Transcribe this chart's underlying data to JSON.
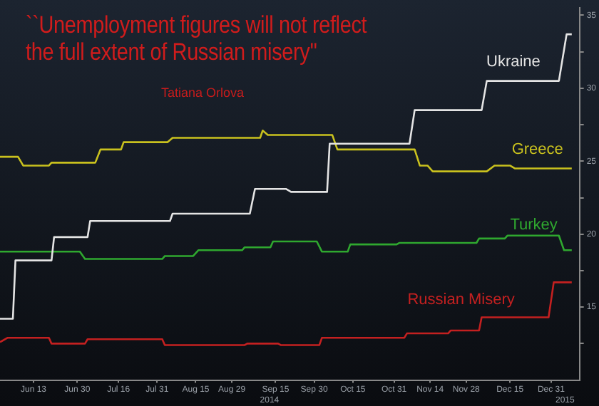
{
  "chart_data": {
    "type": "line",
    "title": "``Unemployment figures will not reflect the full extent of Russian misery''",
    "subtitle": "Tatiana Orlova",
    "series": [
      {
        "name": "Ukraine",
        "color": "#e4e4e4",
        "x": [
          "2014-05-31",
          "2014-06-05",
          "2014-06-06",
          "2014-06-20",
          "2014-06-21",
          "2014-07-04",
          "2014-07-05",
          "2014-08-05",
          "2014-08-06",
          "2014-09-05",
          "2014-09-07",
          "2014-09-19",
          "2014-09-21",
          "2014-10-05",
          "2014-10-06",
          "2014-11-06",
          "2014-11-08",
          "2014-12-04",
          "2014-12-06",
          "2015-01-03",
          "2015-01-06",
          "2015-01-08"
        ],
        "values": [
          14.2,
          14.2,
          18.2,
          18.2,
          19.8,
          19.8,
          20.9,
          20.9,
          21.4,
          21.4,
          23.1,
          23.1,
          22.9,
          22.9,
          26.2,
          26.2,
          28.5,
          28.5,
          30.5,
          30.5,
          33.7,
          33.7
        ]
      },
      {
        "name": "Greece",
        "color": "#c9c11e",
        "x": [
          "2014-05-31",
          "2014-06-07",
          "2014-06-09",
          "2014-06-19",
          "2014-06-20",
          "2014-07-07",
          "2014-07-09",
          "2014-07-17",
          "2014-07-18",
          "2014-08-04",
          "2014-08-06",
          "2014-09-09",
          "2014-09-10",
          "2014-09-12",
          "2014-10-07",
          "2014-10-09",
          "2014-11-08",
          "2014-11-10",
          "2014-11-13",
          "2014-11-15",
          "2014-12-06",
          "2014-12-09",
          "2014-12-15",
          "2014-12-17",
          "2015-01-08"
        ],
        "values": [
          25.3,
          25.3,
          24.7,
          24.7,
          24.9,
          24.9,
          25.8,
          25.8,
          26.3,
          26.3,
          26.6,
          26.6,
          27.1,
          26.8,
          26.8,
          25.8,
          25.8,
          24.7,
          24.7,
          24.3,
          24.3,
          24.7,
          24.7,
          24.5,
          24.5
        ]
      },
      {
        "name": "Turkey",
        "color": "#2fa82f",
        "x": [
          "2014-05-31",
          "2014-07-01",
          "2014-07-03",
          "2014-08-02",
          "2014-08-03",
          "2014-08-14",
          "2014-08-16",
          "2014-09-02",
          "2014-09-03",
          "2014-09-13",
          "2014-09-14",
          "2014-10-01",
          "2014-10-03",
          "2014-10-13",
          "2014-10-14",
          "2014-11-01",
          "2014-11-02",
          "2014-12-02",
          "2014-12-03",
          "2014-12-13",
          "2014-12-14",
          "2015-01-03",
          "2015-01-05",
          "2015-01-08"
        ],
        "values": [
          18.8,
          18.8,
          18.3,
          18.3,
          18.5,
          18.5,
          18.9,
          18.9,
          19.1,
          19.1,
          19.5,
          19.5,
          18.8,
          18.8,
          19.3,
          19.3,
          19.4,
          19.4,
          19.7,
          19.7,
          19.9,
          19.9,
          18.9,
          18.9
        ]
      },
      {
        "name": "Russian Misery",
        "color": "#c42020",
        "x": [
          "2014-05-31",
          "2014-06-03",
          "2014-06-19",
          "2014-06-20",
          "2014-07-03",
          "2014-07-04",
          "2014-08-02",
          "2014-08-03",
          "2014-09-03",
          "2014-09-04",
          "2014-09-16",
          "2014-09-17",
          "2014-10-02",
          "2014-10-03",
          "2014-11-04",
          "2014-11-05",
          "2014-11-21",
          "2014-11-22",
          "2014-12-03",
          "2014-12-04",
          "2014-12-30",
          "2015-01-01",
          "2015-01-08"
        ],
        "values": [
          12.6,
          12.9,
          12.9,
          12.5,
          12.5,
          12.8,
          12.8,
          12.4,
          12.4,
          12.5,
          12.5,
          12.4,
          12.4,
          12.9,
          12.9,
          13.2,
          13.2,
          13.4,
          13.4,
          14.3,
          14.3,
          16.7,
          16.7
        ]
      }
    ],
    "xlim": [
      "2014-05-31",
      "2015-01-11"
    ],
    "xticks": [
      {
        "value": "2014-06-13",
        "label": "Jun 13"
      },
      {
        "value": "2014-06-30",
        "label": "Jun 30"
      },
      {
        "value": "2014-07-16",
        "label": "Jul 16"
      },
      {
        "value": "2014-07-31",
        "label": "Jul 31"
      },
      {
        "value": "2014-08-15",
        "label": "Aug 15"
      },
      {
        "value": "2014-08-29",
        "label": "Aug 29"
      },
      {
        "value": "2014-09-15",
        "label": "Sep 15"
      },
      {
        "value": "2014-09-30",
        "label": "Sep 30"
      },
      {
        "value": "2014-10-15",
        "label": "Oct 15"
      },
      {
        "value": "2014-10-31",
        "label": "Oct 31"
      },
      {
        "value": "2014-11-14",
        "label": "Nov 14"
      },
      {
        "value": "2014-11-28",
        "label": "Nov 28"
      },
      {
        "value": "2014-12-15",
        "label": "Dec 15"
      },
      {
        "value": "2014-12-31",
        "label": "Dec 31"
      }
    ],
    "ylim": [
      10,
      35.5
    ],
    "yticks": [
      {
        "value": 12.5,
        "label": null
      },
      15,
      {
        "value": 17.5,
        "label": null
      },
      20,
      {
        "value": 22.5,
        "label": null
      },
      25,
      {
        "value": 27.5,
        "label": null
      },
      30,
      {
        "value": 32.5,
        "label": null
      },
      35
    ],
    "annotations": [
      "2014",
      "2015"
    ],
    "grid": false,
    "legend": false,
    "marker": "none",
    "line_style": "solid"
  }
}
